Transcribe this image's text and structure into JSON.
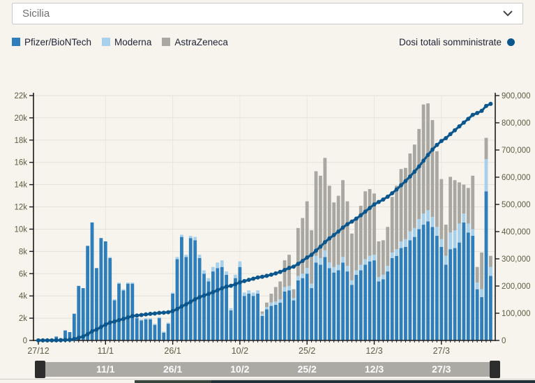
{
  "region_selector": {
    "value": "Sicilia"
  },
  "legend": {
    "items": [
      {
        "label": "Pfizer/BioNTech",
        "color": "#2f7ebc"
      },
      {
        "label": "Moderna",
        "color": "#a6d0ec"
      },
      {
        "label": "AstraZeneca",
        "color": "#a9a7a1"
      }
    ],
    "total_label": "Dosi totali somministrate",
    "total_color": "#0b578d"
  },
  "navigator": {
    "labels": [
      {
        "label": "11/1",
        "day": 15
      },
      {
        "label": "26/1",
        "day": 30
      },
      {
        "label": "10/2",
        "day": 45
      },
      {
        "label": "25/2",
        "day": 60
      },
      {
        "label": "12/3",
        "day": 75
      },
      {
        "label": "27/3",
        "day": 90
      }
    ],
    "bar_color": "#abaaa5",
    "handle_color": "#2d2d2d"
  },
  "chart_data": {
    "type": "bar",
    "subtype": "stacked-bars-with-cumulative-line",
    "colors": {
      "pfizer": "#2f7ebc",
      "moderna": "#a6d0ec",
      "astrazeneca": "#a9a7a1",
      "line": "#0b578d",
      "grid": "#e4e1d8",
      "grid_vertical": "#eae7df",
      "axis": "#1b1b1b",
      "axis_label": "#5d5d45"
    },
    "left_axis": {
      "max": 22000,
      "ticks": [
        "0",
        "2k",
        "4k",
        "6k",
        "8k",
        "10k",
        "12k",
        "14k",
        "16k",
        "18k",
        "20k",
        "22k"
      ]
    },
    "right_axis": {
      "max": 900000,
      "ticks": [
        "0",
        "100,000",
        "200,000",
        "300,000",
        "400,000",
        "500,000",
        "600,000",
        "700,000",
        "800,000",
        "900,000"
      ]
    },
    "x_ticks": [
      {
        "label": "27/12",
        "day": 0
      },
      {
        "label": "11/1",
        "day": 15
      },
      {
        "label": "26/1",
        "day": 30
      },
      {
        "label": "10/2",
        "day": 45
      },
      {
        "label": "25/2",
        "day": 60
      },
      {
        "label": "12/3",
        "day": 75
      },
      {
        "label": "27/3",
        "day": 90
      }
    ],
    "categories": [
      "27/12",
      "28/12",
      "29/12",
      "30/12",
      "31/12",
      "1/1",
      "2/1",
      "3/1",
      "4/1",
      "5/1",
      "6/1",
      "7/1",
      "8/1",
      "9/1",
      "10/1",
      "11/1",
      "12/1",
      "13/1",
      "14/1",
      "15/1",
      "16/1",
      "17/1",
      "18/1",
      "19/1",
      "20/1",
      "21/1",
      "22/1",
      "23/1",
      "24/1",
      "25/1",
      "26/1",
      "27/1",
      "28/1",
      "29/1",
      "30/1",
      "31/1",
      "1/2",
      "2/2",
      "3/2",
      "4/2",
      "5/2",
      "6/2",
      "7/2",
      "8/2",
      "9/2",
      "10/2",
      "11/2",
      "12/2",
      "13/2",
      "14/2",
      "15/2",
      "16/2",
      "17/2",
      "18/2",
      "19/2",
      "20/2",
      "21/2",
      "22/2",
      "23/2",
      "24/2",
      "25/2",
      "26/2",
      "27/2",
      "28/2",
      "1/3",
      "2/3",
      "3/3",
      "4/3",
      "5/3",
      "6/3",
      "7/3",
      "8/3",
      "9/3",
      "10/3",
      "11/3",
      "12/3",
      "13/3",
      "14/3",
      "15/3",
      "16/3",
      "17/3",
      "18/3",
      "19/3",
      "20/3",
      "21/3",
      "22/3",
      "23/3",
      "24/3",
      "25/3",
      "26/3",
      "27/3",
      "28/3",
      "29/3",
      "30/3",
      "31/3",
      "1/4",
      "2/4",
      "3/4",
      "4/4",
      "5/4",
      "6/4",
      "7/4"
    ],
    "series": [
      {
        "name": "Pfizer/BioNTech",
        "color": "#2f7ebc",
        "values": [
          160,
          50,
          50,
          120,
          350,
          200,
          900,
          750,
          2400,
          4900,
          4700,
          8500,
          10600,
          6500,
          9200,
          8900,
          7400,
          3600,
          5100,
          4500,
          5100,
          5100,
          2000,
          1800,
          1900,
          1900,
          1400,
          2000,
          700,
          1500,
          4200,
          7300,
          9300,
          7500,
          9200,
          9000,
          7400,
          6000,
          5300,
          6200,
          6500,
          6600,
          5900,
          2700,
          5600,
          6600,
          4000,
          4200,
          4000,
          4200,
          2200,
          2800,
          3100,
          3200,
          3400,
          4400,
          4500,
          3600,
          5400,
          5600,
          6000,
          4700,
          7000,
          6800,
          7500,
          6500,
          6100,
          6300,
          7000,
          6200,
          5000,
          5900,
          6300,
          6800,
          7100,
          7200,
          5300,
          5500,
          6200,
          7400,
          7600,
          8300,
          8400,
          9000,
          9300,
          10000,
          10400,
          10700,
          10200,
          9400,
          8400,
          6800,
          8200,
          8300,
          8800,
          10600,
          9700,
          9400,
          4600,
          3900,
          13400,
          5800
        ]
      },
      {
        "name": "Moderna",
        "color": "#a6d0ec",
        "values": [
          0,
          0,
          0,
          0,
          0,
          0,
          0,
          0,
          0,
          0,
          0,
          0,
          0,
          0,
          0,
          0,
          100,
          100,
          100,
          100,
          100,
          100,
          100,
          100,
          100,
          100,
          100,
          100,
          100,
          100,
          100,
          200,
          200,
          200,
          200,
          300,
          300,
          300,
          300,
          400,
          500,
          600,
          300,
          200,
          300,
          500,
          300,
          300,
          300,
          300,
          200,
          200,
          300,
          300,
          300,
          400,
          400,
          200,
          400,
          400,
          500,
          400,
          600,
          600,
          600,
          500,
          500,
          500,
          500,
          500,
          400,
          400,
          500,
          500,
          500,
          500,
          400,
          400,
          500,
          500,
          600,
          600,
          700,
          800,
          800,
          900,
          1000,
          1000,
          900,
          800,
          700,
          800,
          1500,
          1600,
          1700,
          800,
          800,
          600,
          600,
          700,
          2900,
          800
        ]
      },
      {
        "name": "AstraZeneca",
        "color": "#a9a7a1",
        "values": [
          0,
          0,
          0,
          0,
          0,
          0,
          0,
          0,
          0,
          0,
          0,
          0,
          0,
          0,
          0,
          0,
          0,
          0,
          0,
          0,
          0,
          0,
          0,
          0,
          0,
          0,
          0,
          0,
          0,
          0,
          0,
          0,
          0,
          0,
          0,
          0,
          0,
          0,
          0,
          0,
          0,
          0,
          0,
          0,
          0,
          0,
          0,
          0,
          0,
          0,
          200,
          400,
          800,
          1300,
          1600,
          2400,
          2800,
          800,
          4300,
          5000,
          6000,
          4800,
          7600,
          7400,
          8300,
          6900,
          5800,
          6200,
          6900,
          5800,
          4200,
          4500,
          5300,
          6100,
          6000,
          5500,
          3200,
          3100,
          3500,
          5000,
          5700,
          6500,
          6400,
          7000,
          7500,
          8100,
          9800,
          9600,
          8700,
          6800,
          5400,
          2800,
          5000,
          4500,
          3700,
          2600,
          3200,
          4800,
          1400,
          3300,
          1900,
          1000
        ]
      }
    ],
    "line_series": {
      "name": "Dosi totali somministrate",
      "color": "#0b578d",
      "axis": "right",
      "definition": "cumulative running sum of all three series"
    }
  }
}
